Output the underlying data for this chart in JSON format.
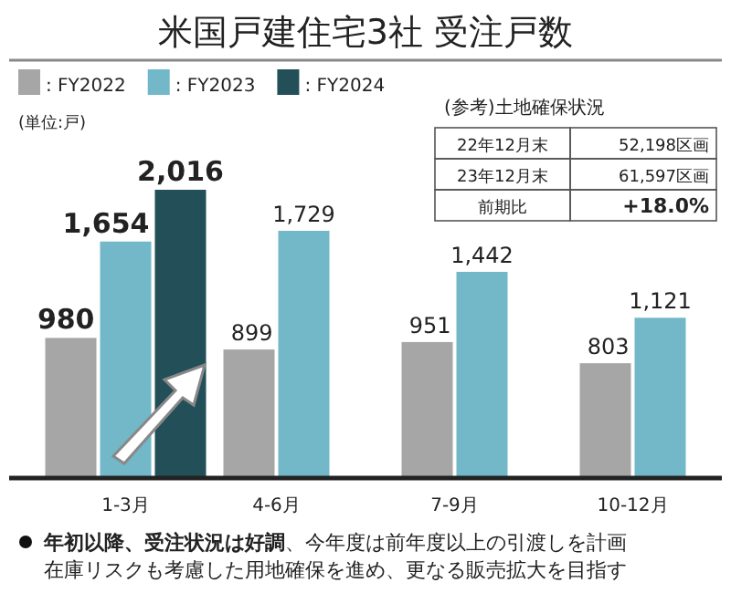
{
  "chart_data": {
    "type": "bar",
    "title": "米国戸建住宅3社 受注戸数",
    "categories": [
      "1-3月",
      "4-6月",
      "7-9月",
      "10-12月"
    ],
    "series": [
      {
        "name": ": FY2022",
        "color": "#a6a6a6",
        "values": [
          980,
          899,
          951,
          803
        ],
        "value_labels": [
          "980",
          "899",
          "951",
          "803"
        ]
      },
      {
        "name": ": FY2023",
        "color": "#72b8c9",
        "values": [
          1654,
          1729,
          1442,
          1121
        ],
        "value_labels": [
          "1,654",
          "1,729",
          "1,442",
          "1,121"
        ]
      },
      {
        "name": ": FY2024",
        "color": "#234f59",
        "values": [
          2016,
          null,
          null,
          null
        ],
        "value_labels": [
          "2,016",
          null,
          null,
          null
        ]
      }
    ],
    "legend": "top left",
    "annotations": [
      "(単位:戸)",
      "(参考)土地確保状況",
      "22年12月末",
      "52,198区画",
      "23年12月末",
      "61,597区画",
      "前期比",
      "+18.0%",
      "年初以降、受注状況は好調",
      "、今年度は前年度以上の引渡しを計画",
      "在庫リスクも考慮した用地確保を進め、更なる販売拡大を目指す"
    ]
  }
}
